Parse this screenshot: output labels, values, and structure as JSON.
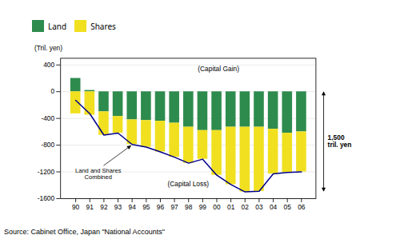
{
  "chart_data": {
    "type": "bar",
    "stacked": true,
    "categories": [
      "90",
      "91",
      "92",
      "93",
      "94",
      "95",
      "96",
      "97",
      "98",
      "99",
      "00",
      "01",
      "02",
      "03",
      "04",
      "05",
      "06"
    ],
    "series": [
      {
        "name": "Land",
        "color": "#2e8b4e",
        "values": [
          200,
          20,
          -300,
          -370,
          -420,
          -430,
          -440,
          -470,
          -530,
          -580,
          -580,
          -530,
          -530,
          -530,
          -560,
          -620,
          -600
        ]
      },
      {
        "name": "Shares",
        "color": "#f0e020",
        "values": [
          -330,
          -350,
          -350,
          -250,
          -370,
          -400,
          -460,
          -510,
          -540,
          -430,
          -670,
          -860,
          -970,
          -960,
          -670,
          -590,
          -600
        ]
      },
      {
        "name": "Land and Shares\nCombined",
        "type": "line",
        "color": "#00008b",
        "values": [
          -130,
          -330,
          -650,
          -620,
          -790,
          -830,
          -900,
          -980,
          -1070,
          -1010,
          -1250,
          -1390,
          -1500,
          -1490,
          -1230,
          -1210,
          -1200
        ]
      }
    ],
    "y_label": "(Tril. yen)",
    "ylim": [
      -1600,
      500
    ],
    "yticks": [
      -1600,
      -1200,
      -800,
      -400,
      0,
      400
    ],
    "grid": true,
    "legend": "top-left",
    "annotations": [
      {
        "text": "(Capital Gain)"
      },
      {
        "text": "(Capital Loss)"
      },
      {
        "text": "Land and Shares\nCombined",
        "arrow_to": "94"
      }
    ],
    "bracket": {
      "text": "1,500\ntril. yen",
      "from": 0,
      "to": -1500
    },
    "source": "Source: Cabinet Office, Japan \"National Accounts\""
  }
}
